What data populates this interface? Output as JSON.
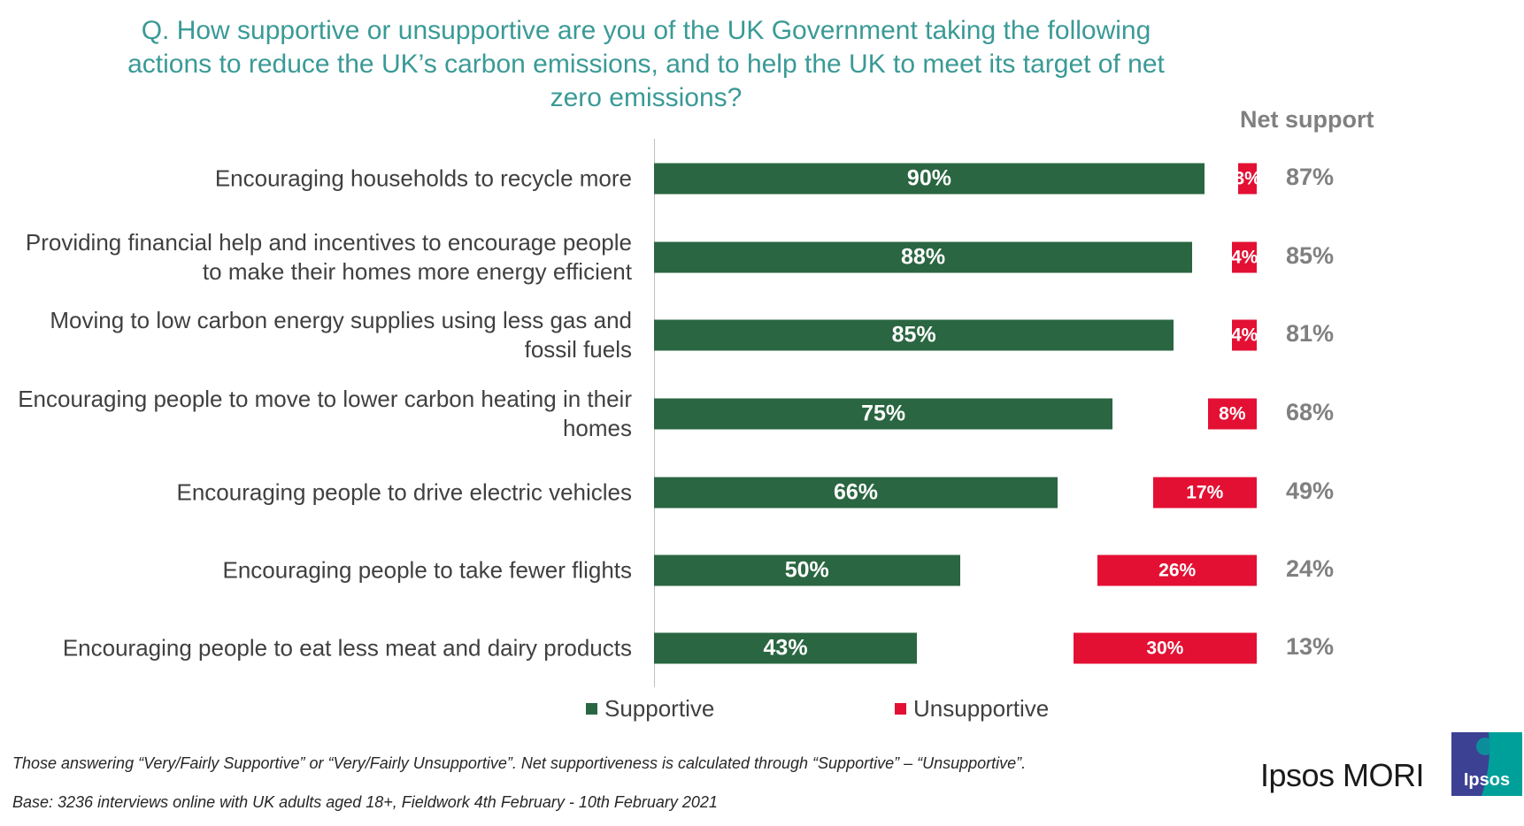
{
  "chart_data": {
    "type": "bar",
    "orientation": "horizontal",
    "title": "Q. How supportive or unsupportive are you of the UK Government taking the following actions to reduce the UK’s carbon emissions, and to help the UK to meet its target of net zero emissions?",
    "categories": [
      "Encouraging households to recycle more",
      "Providing financial help and incentives to encourage people to make their homes more energy efficient",
      "Moving to low carbon energy supplies using less gas and fossil fuels",
      "Encouraging people to move to lower carbon heating in their homes",
      "Encouraging people to drive electric vehicles",
      "Encouraging people to take fewer flights",
      "Encouraging people to eat less meat and dairy products"
    ],
    "series": [
      {
        "name": "Supportive",
        "color": "#2a6641",
        "values": [
          90,
          88,
          85,
          75,
          66,
          50,
          43
        ]
      },
      {
        "name": "Unsupportive",
        "color": "#e31034",
        "values": [
          3,
          4,
          4,
          8,
          17,
          26,
          30
        ]
      }
    ],
    "net_support": {
      "header": "Net support",
      "values": [
        87,
        85,
        81,
        68,
        49,
        24,
        13
      ]
    },
    "unit": "%",
    "legend_position": "bottom",
    "grid": false
  },
  "footnotes": [
    "Those answering “Very/Fairly Supportive” or “Very/Fairly Unsupportive”. Net supportiveness is calculated through “Supportive” – “Unsupportive”.",
    "Base: 3236 interviews online with UK adults aged 18+, Fieldwork 4th February - 10th February 2021"
  ],
  "branding": {
    "wordmark": "Ipsos MORI",
    "logo_text": "Ipsos"
  },
  "colors": {
    "title": "#3a9a96",
    "supportive": "#2a6641",
    "unsupportive": "#e31034",
    "net": "#808080"
  }
}
